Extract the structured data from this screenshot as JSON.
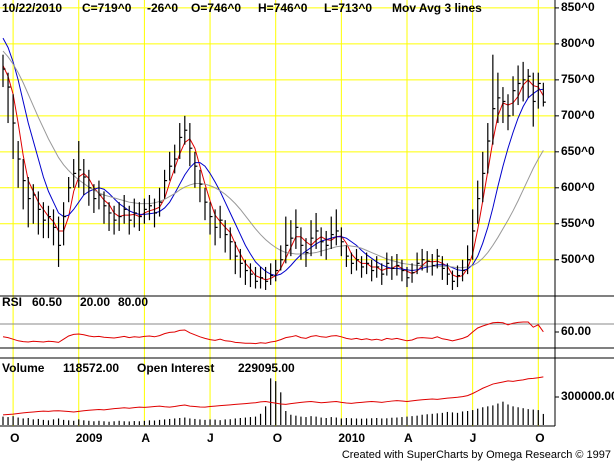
{
  "chart_data": [
    {
      "type": "ohlc",
      "header": {
        "date": "10/22/2010",
        "close": "C=719^0",
        "change": "-26^0",
        "open": "O=746^0",
        "high": "H=746^0",
        "low": "L=713^0",
        "study": "Mov Avg 3 lines"
      },
      "change_color": "#e00000",
      "bar_color": "#000000",
      "ylim": [
        451,
        861
      ],
      "yticks": [
        {
          "value": 850,
          "label": "850^0"
        },
        {
          "value": 800,
          "label": "800^0"
        },
        {
          "value": 750,
          "label": "750^0"
        },
        {
          "value": 700,
          "label": "700^0"
        },
        {
          "value": 650,
          "label": "650^0"
        },
        {
          "value": 600,
          "label": "600^0"
        },
        {
          "value": 550,
          "label": "550^0"
        },
        {
          "value": 500,
          "label": "500^0"
        }
      ],
      "grid": true,
      "grid_color": "#ffff00",
      "high": [
        785,
        760,
        730,
        665,
        640,
        615,
        605,
        595,
        580,
        575,
        570,
        560,
        580,
        615,
        640,
        665,
        640,
        625,
        605,
        610,
        595,
        580,
        575,
        580,
        590,
        575,
        585,
        580,
        585,
        590,
        585,
        600,
        625,
        650,
        660,
        690,
        700,
        690,
        650,
        625,
        600,
        580,
        570,
        575,
        555,
        545,
        525,
        515,
        500,
        495,
        490,
        490,
        490,
        495,
        500,
        520,
        560,
        555,
        570,
        545,
        530,
        555,
        565,
        545,
        540,
        560,
        570,
        545,
        520,
        510,
        515,
        505,
        510,
        500,
        505,
        495,
        510,
        505,
        508,
        500,
        490,
        495,
        510,
        515,
        512,
        508,
        515,
        505,
        495,
        485,
        492,
        500,
        520,
        570,
        610,
        650,
        690,
        785,
        760,
        740,
        730,
        755,
        770,
        775,
        765,
        760,
        760,
        746
      ],
      "low": [
        740,
        690,
        640,
        600,
        570,
        545,
        550,
        535,
        530,
        530,
        520,
        490,
        520,
        580,
        600,
        600,
        590,
        575,
        565,
        570,
        550,
        540,
        535,
        540,
        550,
        535,
        545,
        540,
        550,
        555,
        545,
        560,
        585,
        610,
        620,
        640,
        660,
        630,
        600,
        580,
        555,
        535,
        520,
        530,
        510,
        500,
        480,
        475,
        465,
        462,
        460,
        460,
        458,
        465,
        470,
        485,
        495,
        505,
        515,
        500,
        490,
        505,
        515,
        505,
        500,
        515,
        520,
        505,
        490,
        480,
        485,
        475,
        480,
        470,
        475,
        465,
        478,
        472,
        478,
        470,
        462,
        468,
        480,
        485,
        482,
        478,
        488,
        472,
        465,
        458,
        462,
        470,
        480,
        500,
        550,
        580,
        620,
        660,
        690,
        690,
        680,
        700,
        715,
        720,
        725,
        685,
        710,
        713
      ],
      "close": [
        765,
        740,
        690,
        640,
        610,
        585,
        590,
        570,
        555,
        560,
        545,
        520,
        560,
        600,
        620,
        625,
        615,
        600,
        585,
        590,
        575,
        565,
        555,
        560,
        570,
        555,
        565,
        560,
        570,
        575,
        565,
        580,
        610,
        630,
        640,
        670,
        680,
        655,
        630,
        605,
        580,
        560,
        545,
        555,
        535,
        525,
        505,
        495,
        485,
        480,
        470,
        475,
        470,
        478,
        485,
        500,
        520,
        530,
        545,
        520,
        510,
        530,
        540,
        525,
        520,
        535,
        540,
        525,
        505,
        495,
        500,
        490,
        495,
        485,
        490,
        480,
        495,
        488,
        492,
        485,
        475,
        482,
        495,
        500,
        498,
        492,
        505,
        488,
        480,
        470,
        478,
        485,
        500,
        540,
        585,
        620,
        665,
        710,
        725,
        720,
        700,
        735,
        745,
        750,
        755,
        720,
        745,
        719
      ],
      "series": [
        {
          "color": "#e00000",
          "values": [
            770,
            755,
            730,
            690,
            645,
            610,
            595,
            580,
            570,
            560,
            553,
            540,
            540,
            560,
            595,
            615,
            620,
            613,
            600,
            592,
            583,
            577,
            565,
            560,
            562,
            562,
            563,
            560,
            565,
            568,
            570,
            573,
            585,
            607,
            627,
            647,
            663,
            668,
            655,
            630,
            605,
            582,
            562,
            553,
            545,
            538,
            522,
            508,
            495,
            487,
            478,
            475,
            472,
            474,
            478,
            488,
            502,
            517,
            532,
            532,
            525,
            520,
            527,
            532,
            528,
            527,
            532,
            533,
            523,
            508,
            500,
            495,
            495,
            490,
            490,
            485,
            488,
            488,
            492,
            488,
            484,
            481,
            484,
            492,
            498,
            497,
            498,
            495,
            491,
            479,
            476,
            478,
            488,
            508,
            542,
            582,
            623,
            665,
            700,
            718,
            715,
            718,
            727,
            743,
            750,
            742,
            740,
            728
          ]
        },
        {
          "color": "#0000cc",
          "values": [
            808,
            795,
            775,
            750,
            720,
            690,
            665,
            640,
            615,
            595,
            580,
            565,
            560,
            562,
            570,
            580,
            590,
            595,
            598,
            600,
            598,
            592,
            585,
            578,
            573,
            568,
            565,
            563,
            563,
            564,
            565,
            567,
            572,
            580,
            592,
            605,
            618,
            628,
            635,
            635,
            630,
            620,
            608,
            595,
            580,
            565,
            550,
            535,
            520,
            508,
            497,
            490,
            484,
            480,
            478,
            480,
            485,
            492,
            500,
            507,
            512,
            517,
            522,
            526,
            528,
            530,
            532,
            532,
            530,
            525,
            520,
            513,
            507,
            502,
            497,
            493,
            490,
            488,
            488,
            487,
            486,
            485,
            486,
            488,
            490,
            491,
            493,
            493,
            492,
            489,
            486,
            485,
            487,
            493,
            505,
            523,
            545,
            572,
            602,
            630,
            655,
            677,
            697,
            713,
            725,
            731,
            736,
            737
          ]
        },
        {
          "color": "#999999",
          "values": [
            790,
            782,
            772,
            760,
            746,
            730,
            714,
            698,
            683,
            668,
            655,
            642,
            632,
            624,
            617,
            611,
            606,
            601,
            597,
            593,
            590,
            588,
            586,
            584,
            582,
            580,
            579,
            578,
            578,
            578,
            579,
            581,
            584,
            588,
            592,
            597,
            601,
            604,
            606,
            606,
            605,
            603,
            600,
            596,
            591,
            585,
            578,
            570,
            561,
            552,
            543,
            535,
            528,
            522,
            517,
            513,
            510,
            509,
            508,
            508,
            508,
            509,
            510,
            512,
            514,
            516,
            518,
            519,
            520,
            519,
            518,
            516,
            513,
            510,
            507,
            504,
            501,
            499,
            497,
            495,
            494,
            493,
            492,
            492,
            491,
            491,
            491,
            491,
            491,
            490,
            489,
            489,
            490,
            492,
            496,
            502,
            510,
            520,
            531,
            543,
            555,
            568,
            582,
            597,
            612,
            627,
            640,
            652
          ]
        }
      ]
    },
    {
      "type": "line",
      "name": "RSI",
      "legend_value": "60.50",
      "ylim": [
        0,
        100
      ],
      "yticks": [
        {
          "value": 60,
          "label": "60.00"
        }
      ],
      "levels": [
        {
          "value": 20,
          "label": "20.00",
          "color": "#000000"
        },
        {
          "value": 80,
          "label": "80.00",
          "color": "#888888"
        }
      ],
      "series": [
        {
          "color": "#e00000",
          "values": [
            48,
            46,
            42,
            38,
            36,
            35,
            37,
            36,
            35,
            37,
            36,
            34,
            42,
            50,
            54,
            55,
            53,
            50,
            48,
            49,
            47,
            46,
            45,
            47,
            49,
            46,
            48,
            47,
            49,
            50,
            48,
            51,
            56,
            59,
            60,
            64,
            65,
            58,
            53,
            48,
            44,
            41,
            39,
            42,
            38,
            37,
            34,
            33,
            32,
            32,
            31,
            33,
            32,
            35,
            37,
            41,
            46,
            48,
            51,
            46,
            44,
            49,
            51,
            48,
            47,
            50,
            51,
            48,
            44,
            42,
            44,
            41,
            43,
            40,
            42,
            39,
            44,
            42,
            44,
            41,
            38,
            40,
            45,
            46,
            45,
            44,
            48,
            43,
            41,
            38,
            41,
            44,
            49,
            60,
            70,
            75,
            79,
            83,
            84,
            83,
            78,
            82,
            84,
            85,
            85,
            72,
            78,
            60.5
          ]
        }
      ]
    },
    {
      "type": "bar",
      "name": "Volume",
      "legend_value": "118572.00",
      "categories": [
        null,
        null,
        "O",
        null,
        null,
        null,
        null,
        null,
        null,
        null,
        null,
        null,
        null,
        null,
        null,
        "2009",
        null,
        null,
        null,
        null,
        null,
        null,
        null,
        null,
        null,
        null,
        null,
        null,
        "A",
        null,
        null,
        null,
        null,
        null,
        null,
        null,
        null,
        null,
        null,
        null,
        null,
        "J",
        null,
        null,
        null,
        null,
        null,
        null,
        null,
        null,
        null,
        null,
        null,
        null,
        "O",
        null,
        null,
        null,
        null,
        null,
        null,
        null,
        null,
        null,
        null,
        null,
        null,
        "2010",
        null,
        null,
        null,
        null,
        null,
        null,
        null,
        null,
        null,
        null,
        null,
        null,
        "A",
        null,
        null,
        null,
        null,
        null,
        null,
        null,
        null,
        null,
        null,
        null,
        null,
        "J",
        null,
        null,
        null,
        null,
        null,
        null,
        null,
        null,
        null,
        null,
        null,
        null,
        "O",
        null
      ],
      "color": "#000000",
      "ylim": [
        0,
        675000
      ],
      "yticks": [
        {
          "value": 300000,
          "label": "300000.00"
        }
      ],
      "values": [
        90000,
        85000,
        95000,
        80000,
        70000,
        75000,
        60000,
        65000,
        55000,
        50000,
        60000,
        70000,
        55000,
        50000,
        45000,
        60000,
        50000,
        45000,
        40000,
        45000,
        40000,
        35000,
        40000,
        45000,
        40000,
        38000,
        42000,
        40000,
        45000,
        50000,
        48000,
        55000,
        60000,
        65000,
        70000,
        75000,
        80000,
        70000,
        65000,
        60000,
        55000,
        60000,
        58000,
        52000,
        60000,
        62000,
        70000,
        75000,
        80000,
        85000,
        90000,
        120000,
        200000,
        500000,
        470000,
        350000,
        150000,
        110000,
        100000,
        90000,
        85000,
        95000,
        90000,
        80000,
        75000,
        85000,
        80000,
        70000,
        75000,
        72000,
        70000,
        68000,
        70000,
        72000,
        75000,
        70000,
        72000,
        78000,
        80000,
        85000,
        90000,
        95000,
        100000,
        110000,
        115000,
        120000,
        125000,
        130000,
        140000,
        135000,
        130000,
        145000,
        150000,
        160000,
        175000,
        190000,
        200000,
        210000,
        230000,
        250000,
        220000,
        200000,
        190000,
        180000,
        170000,
        165000,
        160000,
        118572
      ],
      "y2lim": [
        0,
        300000
      ],
      "series": [
        {
          "name": "Open Interest",
          "legend_value": "229095.00",
          "color": "#e00000",
          "axis": "y2",
          "values": [
            48000,
            50000,
            52000,
            55000,
            58000,
            60000,
            62000,
            64000,
            66000,
            65000,
            67000,
            68000,
            66000,
            64000,
            62000,
            65000,
            68000,
            70000,
            72000,
            74000,
            72000,
            75000,
            78000,
            80000,
            82000,
            80000,
            83000,
            85000,
            84000,
            86000,
            88000,
            90000,
            87000,
            85000,
            88000,
            92000,
            95000,
            90000,
            88000,
            86000,
            85000,
            88000,
            90000,
            92000,
            94000,
            96000,
            98000,
            100000,
            102000,
            104000,
            106000,
            110000,
            112000,
            108000,
            104000,
            100000,
            98000,
            102000,
            105000,
            108000,
            110000,
            112000,
            109000,
            106000,
            108000,
            110000,
            112000,
            108000,
            105000,
            103000,
            106000,
            108000,
            110000,
            112000,
            110000,
            108000,
            111000,
            114000,
            116000,
            114000,
            112000,
            115000,
            118000,
            120000,
            122000,
            124000,
            122000,
            125000,
            128000,
            130000,
            132000,
            135000,
            140000,
            150000,
            162000,
            175000,
            185000,
            195000,
            200000,
            205000,
            210000,
            208000,
            212000,
            215000,
            220000,
            222000,
            225000,
            229095
          ]
        }
      ]
    }
  ],
  "footer": "Created with SuperCharts by Omega Research © 1997"
}
